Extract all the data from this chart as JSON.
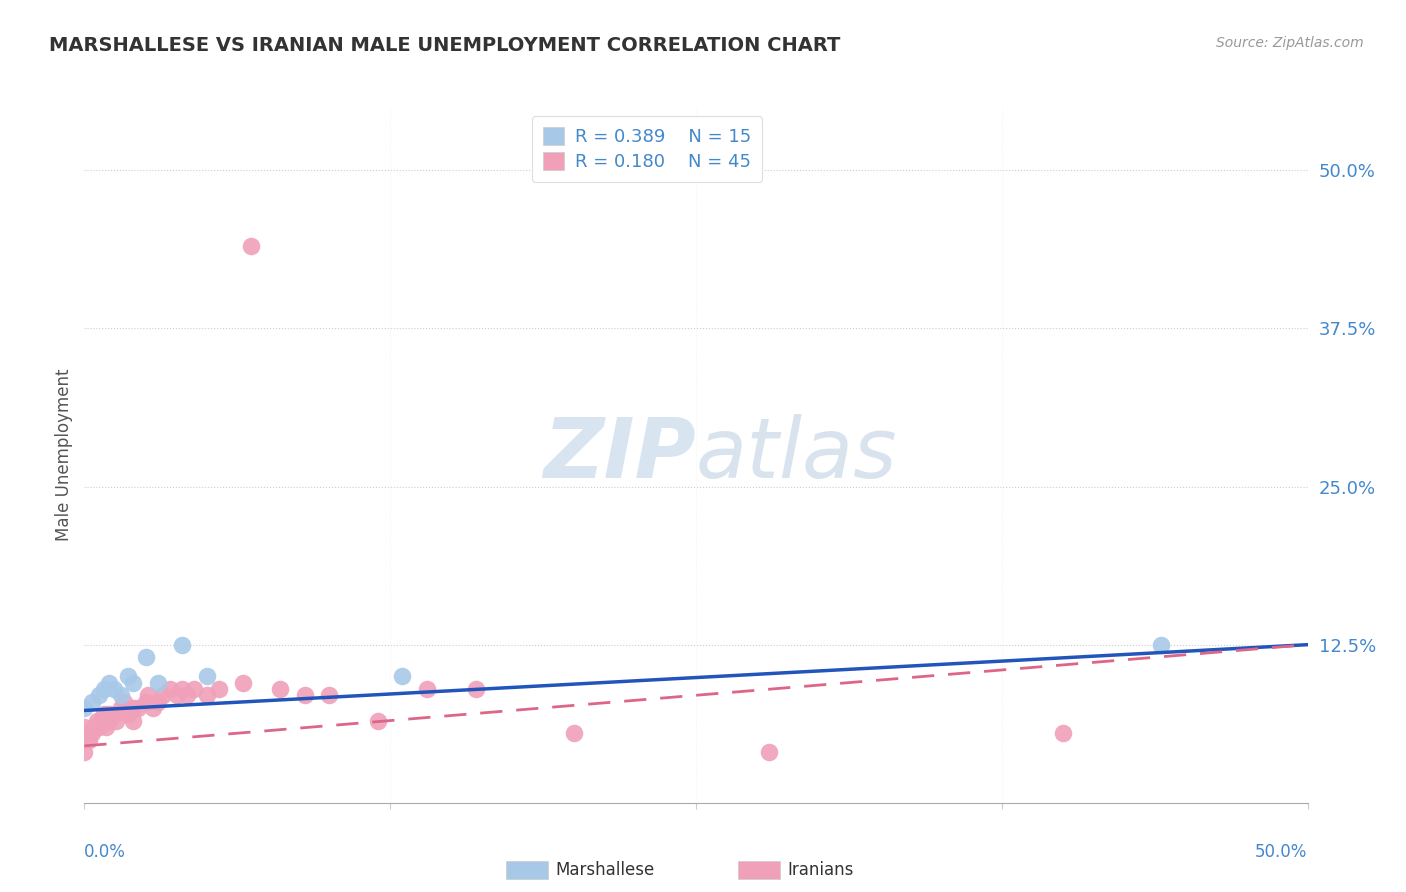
{
  "title": "MARSHALLESE VS IRANIAN MALE UNEMPLOYMENT CORRELATION CHART",
  "source": "Source: ZipAtlas.com",
  "ylabel": "Male Unemployment",
  "ytick_labels": [
    "50.0%",
    "37.5%",
    "25.0%",
    "12.5%"
  ],
  "ytick_values": [
    0.5,
    0.375,
    0.25,
    0.125
  ],
  "xlim": [
    0.0,
    0.5
  ],
  "ylim": [
    0.0,
    0.55
  ],
  "blue_color": "#a8c8e8",
  "pink_color": "#f0a0b8",
  "blue_line_color": "#2255bb",
  "pink_line_color": "#dd6688",
  "watermark_zip": "ZIP",
  "watermark_atlas": "atlas",
  "marshallese_x": [
    0.0,
    0.003,
    0.006,
    0.008,
    0.01,
    0.012,
    0.015,
    0.018,
    0.02,
    0.025,
    0.03,
    0.04,
    0.05,
    0.13,
    0.44
  ],
  "marshallese_y": [
    0.075,
    0.08,
    0.085,
    0.09,
    0.095,
    0.09,
    0.085,
    0.1,
    0.095,
    0.115,
    0.095,
    0.125,
    0.1,
    0.1,
    0.125
  ],
  "iranians_x": [
    0.0,
    0.0,
    0.0,
    0.0,
    0.002,
    0.003,
    0.004,
    0.005,
    0.006,
    0.007,
    0.008,
    0.009,
    0.01,
    0.01,
    0.012,
    0.013,
    0.015,
    0.016,
    0.018,
    0.02,
    0.02,
    0.022,
    0.025,
    0.026,
    0.028,
    0.03,
    0.032,
    0.035,
    0.038,
    0.04,
    0.042,
    0.045,
    0.05,
    0.055,
    0.065,
    0.08,
    0.09,
    0.1,
    0.12,
    0.14,
    0.16,
    0.2,
    0.28,
    0.4,
    0.068
  ],
  "iranians_y": [
    0.04,
    0.05,
    0.055,
    0.06,
    0.05,
    0.055,
    0.06,
    0.065,
    0.06,
    0.065,
    0.07,
    0.06,
    0.065,
    0.07,
    0.07,
    0.065,
    0.075,
    0.08,
    0.07,
    0.075,
    0.065,
    0.075,
    0.08,
    0.085,
    0.075,
    0.08,
    0.085,
    0.09,
    0.085,
    0.09,
    0.085,
    0.09,
    0.085,
    0.09,
    0.095,
    0.09,
    0.085,
    0.085,
    0.065,
    0.09,
    0.09,
    0.055,
    0.04,
    0.055,
    0.44
  ],
  "blue_line_x0": 0.0,
  "blue_line_y0": 0.073,
  "blue_line_x1": 0.5,
  "blue_line_y1": 0.125,
  "pink_line_x0": 0.0,
  "pink_line_y0": 0.045,
  "pink_line_x1": 0.5,
  "pink_line_y1": 0.125
}
